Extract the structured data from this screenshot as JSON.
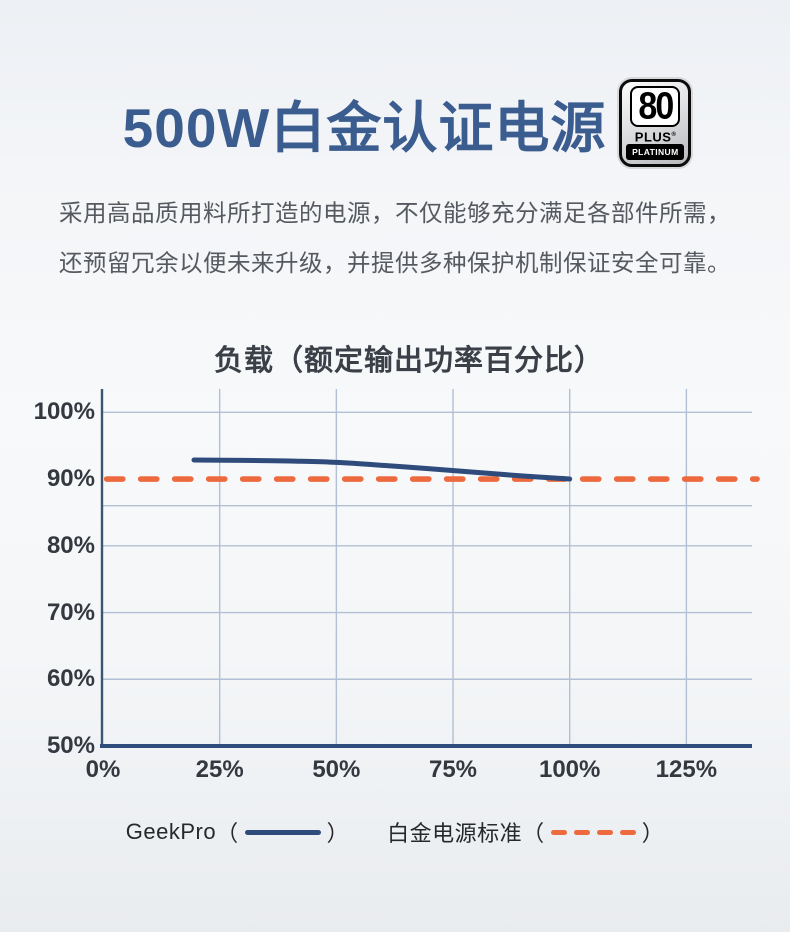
{
  "header": {
    "title": "500W白金认证电源",
    "title_color": "#3B5C8F",
    "badge": {
      "number": "80",
      "plus": "PLUS",
      "reg_mark": "®",
      "tier": "PLATINUM"
    }
  },
  "description": {
    "line1": "采用高品质用料所打造的电源，不仅能够充分满足各部件所需，",
    "line2": "还预留冗余以便未来升级，并提供多种保护机制保证安全可靠。"
  },
  "chart_data": {
    "type": "line",
    "title": "负载（额定输出功率百分比）",
    "xlabel": "负载（额定输出功率百分比）",
    "ylabel": "",
    "xlim": [
      0,
      139
    ],
    "ylim": [
      50,
      103.5
    ],
    "grid_on": true,
    "grid_color": "#B2C0D4",
    "axis_y_color": "#3D5474",
    "axis_x_color": "#2E4C7C",
    "x_ticks": [
      {
        "value": 0,
        "label": "0%"
      },
      {
        "value": 25,
        "label": "25%"
      },
      {
        "value": 50,
        "label": "50%"
      },
      {
        "value": 75,
        "label": "75%"
      },
      {
        "value": 100,
        "label": "100%"
      },
      {
        "value": 125,
        "label": "125%"
      }
    ],
    "y_ticks": [
      {
        "value": 100,
        "label": "100%"
      },
      {
        "value": 90,
        "label": "90%"
      },
      {
        "value": 80,
        "label": "80%"
      },
      {
        "value": 70,
        "label": "70%"
      },
      {
        "value": 60,
        "label": "60%"
      },
      {
        "value": 50,
        "label": "50%"
      }
    ],
    "grid": {
      "vertical_x": [
        25,
        50,
        75,
        100,
        125
      ],
      "horizontal_y": [
        100,
        86,
        80,
        70,
        60
      ]
    },
    "series": [
      {
        "name": "GeekPro",
        "type": "curve",
        "color": "#2E4B7B",
        "points": [
          [
            19.5,
            92.85
          ],
          [
            30,
            92.8
          ],
          [
            40,
            92.7
          ],
          [
            50,
            92.5
          ],
          [
            60,
            92.05
          ],
          [
            70,
            91.55
          ],
          [
            80,
            91.0
          ],
          [
            90,
            90.45
          ],
          [
            100,
            90.0
          ]
        ]
      },
      {
        "name": "白金电源标准",
        "type": "horizontal-dashed",
        "color": "#ED6A3F",
        "value": 90
      }
    ],
    "legend": {
      "position": "bottom",
      "items": [
        {
          "label": "GeekPro",
          "open": "（",
          "close": "）",
          "swatch": "solid-blue"
        },
        {
          "label": "白金电源标准",
          "open": "（",
          "close": "）",
          "swatch": "dashed-orange"
        }
      ]
    }
  }
}
